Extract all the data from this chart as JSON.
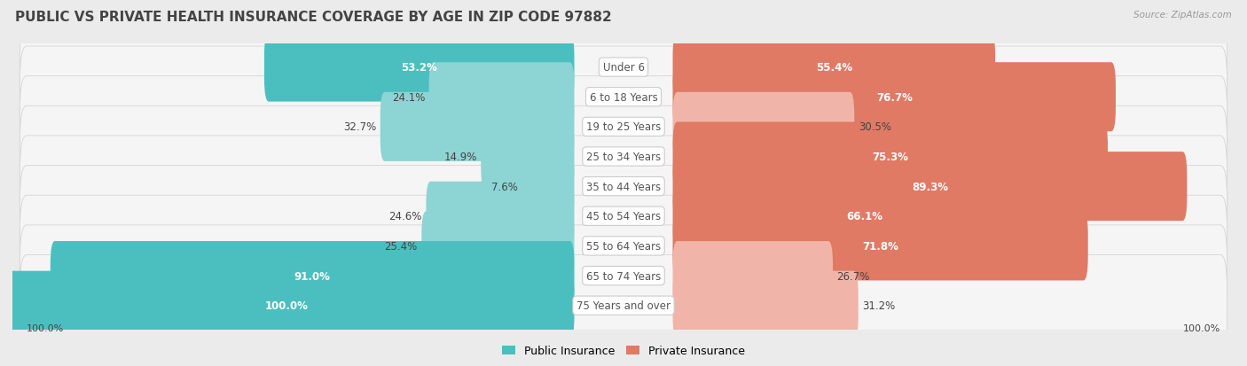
{
  "title": "PUBLIC VS PRIVATE HEALTH INSURANCE COVERAGE BY AGE IN ZIP CODE 97882",
  "source": "Source: ZipAtlas.com",
  "categories": [
    "Under 6",
    "6 to 18 Years",
    "19 to 25 Years",
    "25 to 34 Years",
    "35 to 44 Years",
    "45 to 54 Years",
    "55 to 64 Years",
    "65 to 74 Years",
    "75 Years and over"
  ],
  "public_values": [
    53.2,
    24.1,
    32.7,
    14.9,
    7.6,
    24.6,
    25.4,
    91.0,
    100.0
  ],
  "private_values": [
    55.4,
    76.7,
    30.5,
    75.3,
    89.3,
    66.1,
    71.8,
    26.7,
    31.2
  ],
  "public_color_dark": "#4bbfbf",
  "public_color_light": "#8dd4d4",
  "private_color_dark": "#e07a65",
  "private_color_light": "#f0b5a8",
  "bg_color": "#ebebeb",
  "row_bg_color": "#f5f5f5",
  "row_edge_color": "#d5d5d5",
  "title_fontsize": 11,
  "label_fontsize": 8.5,
  "value_fontsize": 8.5,
  "legend_fontsize": 9,
  "max_val": 100.0,
  "pub_dark_threshold": 50,
  "priv_dark_threshold": 50
}
